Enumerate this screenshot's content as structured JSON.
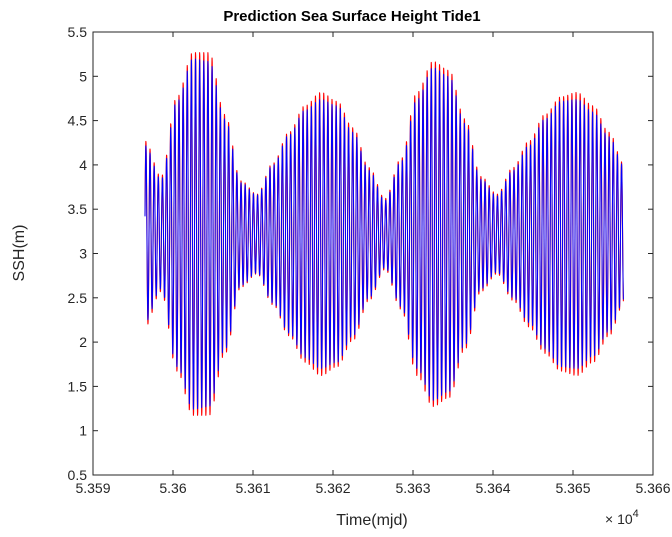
{
  "chart_data": {
    "type": "line",
    "title": "Prediction Sea Surface Height Tide1",
    "xlabel": "Time(mjd)",
    "ylabel": "SSH(m)",
    "x_exponent_label": "× 10",
    "x_exponent_power": "4",
    "xlim": [
      53590,
      53660
    ],
    "ylim": [
      0.5,
      5.5
    ],
    "xticks": [
      53590,
      53600,
      53610,
      53620,
      53630,
      53640,
      53650,
      53660
    ],
    "xtick_labels": [
      "5.359",
      "5.36",
      "5.361",
      "5.362",
      "5.363",
      "5.364",
      "5.365",
      "5.366"
    ],
    "yticks": [
      0.5,
      1,
      1.5,
      2,
      2.5,
      3,
      3.5,
      4,
      4.5,
      5,
      5.5
    ],
    "ytick_labels": [
      "0.5",
      "1",
      "1.5",
      "2",
      "2.5",
      "3",
      "3.5",
      "4",
      "4.5",
      "5",
      "5.5"
    ],
    "grid": false,
    "legend": "none",
    "series": [
      {
        "color": "#ff0000",
        "x_range": [
          53596.5,
          53656.3
        ],
        "mean": 3.22,
        "envelope_knots": [
          [
            53596.5,
            1.05
          ],
          [
            53598.5,
            0.65
          ],
          [
            53600.5,
            1.55
          ],
          [
            53602.5,
            2.05
          ],
          [
            53604.5,
            2.05
          ],
          [
            53606.5,
            1.35
          ],
          [
            53608.5,
            0.6
          ],
          [
            53610.5,
            0.45
          ],
          [
            53612.5,
            0.8
          ],
          [
            53614.5,
            1.15
          ],
          [
            53616.5,
            1.45
          ],
          [
            53618.5,
            1.6
          ],
          [
            53620.5,
            1.5
          ],
          [
            53622.5,
            1.2
          ],
          [
            53624.5,
            0.75
          ],
          [
            53626.5,
            0.4
          ],
          [
            53628.5,
            0.85
          ],
          [
            53630.5,
            1.6
          ],
          [
            53632.5,
            1.95
          ],
          [
            53634.5,
            1.85
          ],
          [
            53636.5,
            1.3
          ],
          [
            53638.5,
            0.65
          ],
          [
            53640.5,
            0.45
          ],
          [
            53642.5,
            0.75
          ],
          [
            53644.5,
            1.05
          ],
          [
            53646.5,
            1.35
          ],
          [
            53648.5,
            1.55
          ],
          [
            53650.5,
            1.6
          ],
          [
            53652.5,
            1.45
          ],
          [
            53654.5,
            1.15
          ],
          [
            53656.3,
            0.8
          ]
        ]
      },
      {
        "color": "#0000ff",
        "x_range": [
          53596.5,
          53656.3
        ],
        "mean": 3.22,
        "envelope_knots": [
          [
            53596.5,
            1.0
          ],
          [
            53598.5,
            0.62
          ],
          [
            53600.5,
            1.5
          ],
          [
            53602.5,
            1.98
          ],
          [
            53604.5,
            1.95
          ],
          [
            53606.5,
            1.3
          ],
          [
            53608.5,
            0.58
          ],
          [
            53610.5,
            0.44
          ],
          [
            53612.5,
            0.78
          ],
          [
            53614.5,
            1.12
          ],
          [
            53616.5,
            1.4
          ],
          [
            53618.5,
            1.52
          ],
          [
            53620.5,
            1.45
          ],
          [
            53622.5,
            1.15
          ],
          [
            53624.5,
            0.72
          ],
          [
            53626.5,
            0.38
          ],
          [
            53628.5,
            0.82
          ],
          [
            53630.5,
            1.52
          ],
          [
            53632.5,
            1.88
          ],
          [
            53634.5,
            1.78
          ],
          [
            53636.5,
            1.25
          ],
          [
            53638.5,
            0.62
          ],
          [
            53640.5,
            0.43
          ],
          [
            53642.5,
            0.72
          ],
          [
            53644.5,
            1.0
          ],
          [
            53646.5,
            1.3
          ],
          [
            53648.5,
            1.5
          ],
          [
            53650.5,
            1.52
          ],
          [
            53652.5,
            1.38
          ],
          [
            53654.5,
            1.1
          ],
          [
            53656.3,
            0.78
          ]
        ]
      }
    ],
    "period_days": 0.517
  }
}
